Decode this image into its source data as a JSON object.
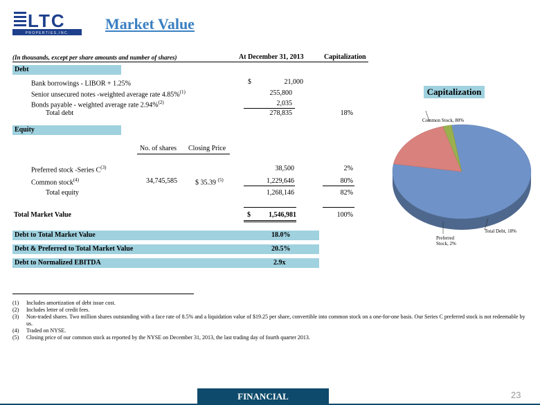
{
  "logo": {
    "letters": "LTC",
    "tagline": "P R O P E R T I E S ,   I N C ."
  },
  "title": "Market Value",
  "table_header": {
    "note": "(In thousands, except per share amounts and number of shares)",
    "col_date": "At December 31, 2013",
    "col_cap": "Capitalization"
  },
  "debt": {
    "label": "Debt",
    "rows": [
      {
        "label": "Bank borrowings - LIBOR + 1.25%",
        "sup": "",
        "dollar": "$",
        "value": "21,000"
      },
      {
        "label": "Senior unsecured notes -weighted average rate 4.85%",
        "sup": "(1)",
        "dollar": "",
        "value": "255,800"
      },
      {
        "label": "Bonds payable  - weighted average rate 2.94%",
        "sup": "(2)",
        "dollar": "",
        "value": "2,035"
      }
    ],
    "total_label": "Total debt",
    "total_value": "278,835",
    "total_cap": "18%"
  },
  "equity": {
    "label": "Equity",
    "col_shares": "No. of shares",
    "col_price": "Closing Price",
    "preferred_label": "Preferred stock -Series C",
    "preferred_sup": "(3)",
    "preferred_value": "38,500",
    "preferred_cap": "2%",
    "common_label": "Common stock",
    "common_sup": "(4)",
    "common_shares": "34,745,585",
    "common_price": "$  35.39",
    "common_price_sup": "(5)",
    "common_value": "1,229,646",
    "common_cap": "80%",
    "total_label": "Total equity",
    "total_value": "1,268,146",
    "total_cap": "82%"
  },
  "total_market": {
    "label": "Total Market Value",
    "dollar": "$",
    "value": "1,546,981",
    "cap": "100%"
  },
  "ratios": [
    {
      "label": "Debt to Total Market Value",
      "value": "18.0%"
    },
    {
      "label": "Debt & Preferred to Total Market Value",
      "value": "20.5%"
    },
    {
      "label": "Debt to Normalized EBITDA",
      "value": "2.9x"
    }
  ],
  "footnotes": [
    {
      "n": "(1)",
      "text": "Includes amortization of debt issue cost."
    },
    {
      "n": "(2)",
      "text": "Includes letter of credit fees."
    },
    {
      "n": "(3)",
      "text": "Non-traded shares.  Two million shares outstanding with a face rate of 8.5% and a liquidation value of $19.25 per share, convertible into common stock on a one-for-one basis.  Our Series C preferred stock is not redeemable by us."
    },
    {
      "n": "(4)",
      "text": "Traded on NYSE."
    },
    {
      "n": "(5)",
      "text": "Closing price of our common stock as reported by the NYSE on December 31, 2013, the last trading day of fourth quarter 2013."
    }
  ],
  "footer": {
    "label": "FINANCIAL",
    "page": "23"
  },
  "chart_data": {
    "type": "pie",
    "title": "Capitalization",
    "categories": [
      "Common Stock",
      "Total Debt",
      "Preferred Stock"
    ],
    "values": [
      80,
      18,
      2
    ],
    "labels": [
      "Common Stock, 80%",
      "Total Debt, 18%",
      "Preferred Stock, 2%"
    ],
    "colors": {
      "Common Stock": "#6f93c9",
      "Total Debt": "#d9817d",
      "Preferred Stock": "#9ab04e"
    }
  }
}
